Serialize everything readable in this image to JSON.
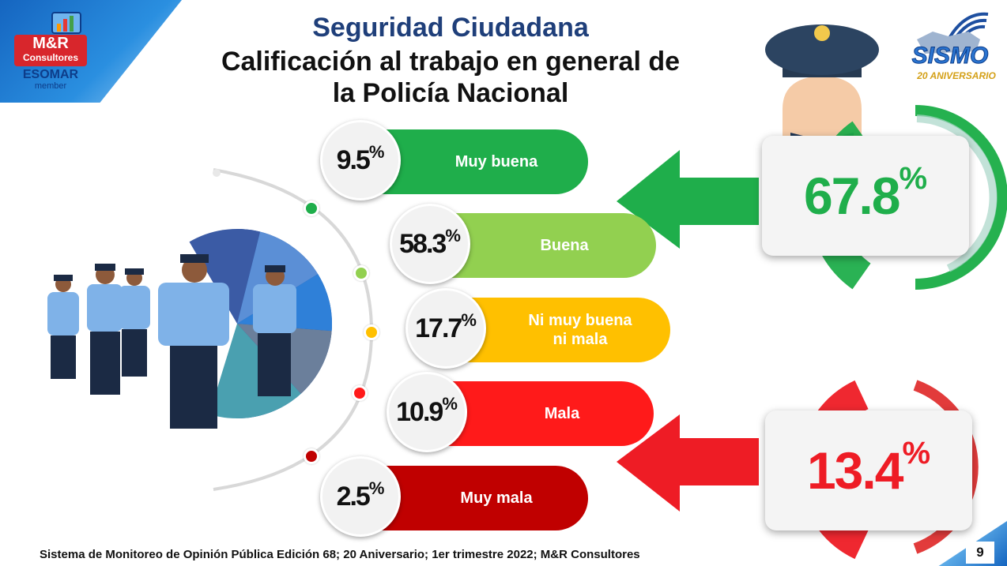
{
  "header": {
    "title": "Seguridad Ciudadana",
    "subtitle_line1": "Calificación al trabajo en general de",
    "subtitle_line2": "la Policía Nacional"
  },
  "logo_left": {
    "name": "M&R",
    "sub": "Consultores",
    "esomar": "ESOMAR",
    "member": "member"
  },
  "logo_right": {
    "name": "SISMO",
    "anniversary": "20 ANIVERSARIO"
  },
  "chart_data": {
    "type": "bar",
    "categories": [
      "Muy buena",
      "Buena",
      "Ni muy buena ni mala",
      "Mala",
      "Muy mala"
    ],
    "category_lines": [
      [
        "Muy buena"
      ],
      [
        "Buena"
      ],
      [
        "Ni muy buena",
        "ni mala"
      ],
      [
        "Mala"
      ],
      [
        "Muy mala"
      ]
    ],
    "values": [
      9.5,
      58.3,
      17.7,
      10.9,
      2.5
    ],
    "value_labels": [
      "9.5",
      "58.3",
      "17.7",
      "10.9",
      "2.5"
    ],
    "unit": "%",
    "colors": [
      "#1fae4b",
      "#92d050",
      "#ffc000",
      "#ff1a1a",
      "#c00000"
    ],
    "groups": [
      {
        "value": 67.8,
        "label": "67.8",
        "color": "#1fae4b"
      },
      {
        "value": 13.4,
        "label": "13.4",
        "color": "#ee1c25"
      }
    ]
  },
  "footer": {
    "text": "Sistema de Monitoreo de Opinión Pública  Edición 68; 20 Aniversario;  1er trimestre 2022; M&R Consultores",
    "page": "9"
  }
}
